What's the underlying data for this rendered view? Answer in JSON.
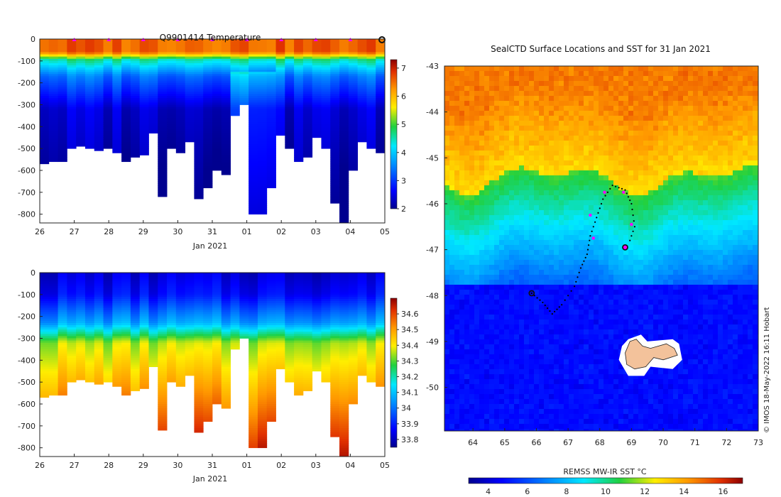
{
  "chart_data": [
    {
      "type": "heatmap",
      "id": "temperature",
      "title": "Q9901414  Temperature",
      "xlabel": "Jan 2021",
      "x_ticks": [
        "26",
        "27",
        "28",
        "29",
        "30",
        "31",
        "01",
        "02",
        "03",
        "04",
        "05"
      ],
      "y_ticks": [
        "0",
        "-100",
        "-200",
        "-300",
        "-400",
        "-500",
        "-600",
        "-700",
        "-800"
      ],
      "ylim": [
        -840,
        0
      ],
      "variable": "Temperature",
      "colorbar": {
        "min": 2,
        "max": 7.3,
        "ticks": [
          "2",
          "3",
          "4",
          "5",
          "6",
          "7"
        ]
      },
      "profile_max_depth_m": [
        570,
        560,
        560,
        500,
        490,
        500,
        510,
        500,
        520,
        560,
        540,
        530,
        430,
        720,
        500,
        520,
        470,
        730,
        680,
        600,
        620,
        350,
        300,
        800,
        800,
        680,
        440,
        500,
        560,
        540,
        450,
        500,
        750,
        840,
        600,
        470,
        500,
        520
      ],
      "surface_markers_day_offset": [
        1,
        2,
        3,
        4,
        5,
        6,
        7,
        8,
        9
      ]
    },
    {
      "type": "heatmap",
      "id": "salinity",
      "title": "",
      "xlabel": "Jan 2021",
      "x_ticks": [
        "26",
        "27",
        "28",
        "29",
        "30",
        "31",
        "01",
        "02",
        "03",
        "04",
        "05"
      ],
      "y_ticks": [
        "0",
        "-100",
        "-200",
        "-300",
        "-400",
        "-500",
        "-600",
        "-700",
        "-800"
      ],
      "ylim": [
        -840,
        0
      ],
      "variable": "Salinity",
      "colorbar": {
        "min": 33.75,
        "max": 34.7,
        "ticks": [
          "34.6",
          "34.5",
          "34.4",
          "34.3",
          "34.2",
          "34.1",
          "34",
          "33.9",
          "33.8"
        ]
      }
    },
    {
      "type": "heatmap",
      "id": "sst_map",
      "title": "SealCTD Surface Locations and SST for 31 Jan 2021",
      "x_ticks": [
        "64",
        "65",
        "66",
        "67",
        "68",
        "69",
        "70",
        "71",
        "72",
        "73"
      ],
      "y_ticks": [
        "-43",
        "-44",
        "-45",
        "-46",
        "-47",
        "-48",
        "-49",
        "-50"
      ],
      "xlim": [
        63.1,
        73
      ],
      "ylim": [
        -50.95,
        -43
      ],
      "colorbar": {
        "label": "REMSS MW-IR SST °C",
        "min": 3,
        "max": 17,
        "ticks": [
          "4",
          "6",
          "8",
          "10",
          "12",
          "14",
          "16"
        ]
      },
      "track_lon_lat": [
        [
          65.85,
          -47.95
        ],
        [
          66.2,
          -48.15
        ],
        [
          66.5,
          -48.4
        ],
        [
          66.8,
          -48.2
        ],
        [
          67.2,
          -47.8
        ],
        [
          67.4,
          -47.4
        ],
        [
          67.6,
          -47.1
        ],
        [
          67.7,
          -46.7
        ],
        [
          67.9,
          -46.3
        ],
        [
          68.1,
          -45.9
        ],
        [
          68.4,
          -45.6
        ],
        [
          68.8,
          -45.7
        ],
        [
          69.0,
          -46.0
        ],
        [
          69.1,
          -46.5
        ],
        [
          68.9,
          -46.9
        ]
      ],
      "highlight_positions_lon_lat": [
        [
          68.8,
          -46.95
        ],
        [
          65.85,
          -47.95
        ]
      ]
    }
  ],
  "credit": "© IMOS 18-May-2022 16:11 Hobart",
  "colors": {
    "land": "#f3c29b",
    "marker": "#ff00ff"
  }
}
